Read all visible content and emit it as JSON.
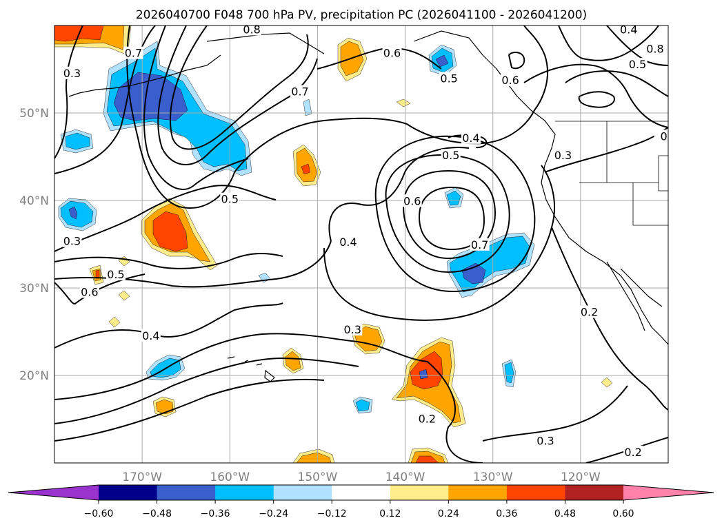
{
  "title": "2026040700 F048 700 hPa PV, precipitation PC (2026041100 - 2026041200)",
  "map": {
    "lon_range": [
      -180,
      -110
    ],
    "lat_range": [
      10,
      60
    ],
    "lon_ticks": [
      {
        "value": -170,
        "label": "170°W"
      },
      {
        "value": -160,
        "label": "160°W"
      },
      {
        "value": -150,
        "label": "150°W"
      },
      {
        "value": -140,
        "label": "140°W"
      },
      {
        "value": -130,
        "label": "130°W"
      },
      {
        "value": -120,
        "label": "120°W"
      }
    ],
    "lat_ticks": [
      {
        "value": 50,
        "label": "50°N"
      },
      {
        "value": 40,
        "label": "40°N"
      },
      {
        "value": 30,
        "label": "30°N"
      },
      {
        "value": 20,
        "label": "20°N"
      }
    ],
    "gridlines": true,
    "tick_label_color": "#808080",
    "contour_labels": [
      {
        "text": "0.3",
        "lon": -178,
        "lat": 54.5
      },
      {
        "text": "0.7",
        "lon": -171,
        "lat": 56.8
      },
      {
        "text": "0.8",
        "lon": -157.5,
        "lat": 59.5
      },
      {
        "text": "0.6",
        "lon": -141.5,
        "lat": 56.8
      },
      {
        "text": "0.5",
        "lon": -135,
        "lat": 53.9
      },
      {
        "text": "0.6",
        "lon": -128,
        "lat": 53.7
      },
      {
        "text": "0.4",
        "lon": -114.5,
        "lat": 59.5
      },
      {
        "text": "0.5",
        "lon": -113.5,
        "lat": 55.5
      },
      {
        "text": "0.8",
        "lon": -111.5,
        "lat": 57.3
      },
      {
        "text": "0.7",
        "lon": -152,
        "lat": 52.4
      },
      {
        "text": "0.4",
        "lon": -132.5,
        "lat": 47.1
      },
      {
        "text": "0.5",
        "lon": -134.8,
        "lat": 45.1
      },
      {
        "text": "0.3",
        "lon": -122,
        "lat": 45.1
      },
      {
        "text": "0.5",
        "lon": -160,
        "lat": 40.1
      },
      {
        "text": "0.6",
        "lon": -139.2,
        "lat": 39.9
      },
      {
        "text": "0.4",
        "lon": -146.5,
        "lat": 35.2
      },
      {
        "text": "0.7",
        "lon": -131.5,
        "lat": 34.9
      },
      {
        "text": "0.3",
        "lon": -178,
        "lat": 35.3
      },
      {
        "text": "0.5",
        "lon": -173,
        "lat": 31.5
      },
      {
        "text": "0.6",
        "lon": -176,
        "lat": 29.5
      },
      {
        "text": "0.2",
        "lon": -119,
        "lat": 27.2
      },
      {
        "text": "0.4",
        "lon": -169,
        "lat": 24.5
      },
      {
        "text": "0.3",
        "lon": -146,
        "lat": 25.2
      },
      {
        "text": "0.2",
        "lon": -137.5,
        "lat": 15
      },
      {
        "text": "0.3",
        "lon": -124,
        "lat": 12.5
      },
      {
        "text": "0.2",
        "lon": -114,
        "lat": 11.2
      },
      {
        "text": "0",
        "lon": -110.5,
        "lat": 47.3
      }
    ]
  },
  "colorbar": {
    "ticks": [
      "−0.60",
      "−0.48",
      "−0.36",
      "−0.24",
      "−0.12",
      "0.12",
      "0.24",
      "0.36",
      "0.48",
      "0.60"
    ],
    "colors": [
      "#9a32cd",
      "#00008b",
      "#3a5fcd",
      "#00bfff",
      "#b0e2ff",
      "#ffffff",
      "#ffec8b",
      "#ffa500",
      "#ff4500",
      "#b22222",
      "#ff82ab"
    ],
    "extend": "both"
  },
  "precip_colors": {
    "pos_light": "#ffec8b",
    "pos_mid": "#ffa500",
    "pos_strong": "#ff4500",
    "neg_light": "#b0e2ff",
    "neg_mid": "#00bfff",
    "neg_strong": "#3a5fcd"
  }
}
